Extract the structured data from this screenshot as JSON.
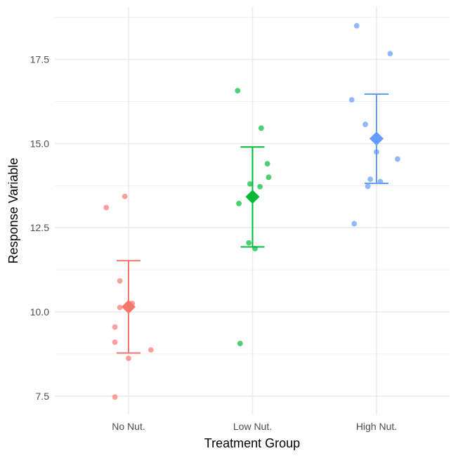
{
  "chart_data": {
    "type": "scatter",
    "xlabel": "Treatment Group",
    "ylabel": "Response Variable",
    "categories": [
      "No Nut.",
      "Low Nut.",
      "High Nut."
    ],
    "y_ticks": [
      "7.5",
      "10.0",
      "12.5",
      "15.0",
      "17.5"
    ],
    "ylim": [
      7.0,
      19.0
    ],
    "grid": true,
    "legend": "none",
    "series": [
      {
        "category": "No Nut.",
        "color": "#F8766D",
        "points": [
          {
            "x": -0.18,
            "y": 13.1
          },
          {
            "x": -0.03,
            "y": 13.43
          },
          {
            "x": -0.07,
            "y": 10.92
          },
          {
            "x": -0.07,
            "y": 10.13
          },
          {
            "x": 0.03,
            "y": 10.25
          },
          {
            "x": -0.11,
            "y": 9.55
          },
          {
            "x": -0.11,
            "y": 9.1
          },
          {
            "x": 0.18,
            "y": 8.87
          },
          {
            "x": 0.0,
            "y": 8.62
          },
          {
            "x": -0.11,
            "y": 7.47
          }
        ],
        "mean": 10.15,
        "error_low": 8.78,
        "error_high": 11.52
      },
      {
        "category": "Low Nut.",
        "color": "#00BA38",
        "points": [
          {
            "x": -0.12,
            "y": 16.57
          },
          {
            "x": 0.07,
            "y": 15.46
          },
          {
            "x": 0.12,
            "y": 14.4
          },
          {
            "x": 0.13,
            "y": 14.0
          },
          {
            "x": -0.02,
            "y": 13.8
          },
          {
            "x": 0.06,
            "y": 13.72
          },
          {
            "x": -0.11,
            "y": 13.22
          },
          {
            "x": -0.03,
            "y": 12.05
          },
          {
            "x": 0.02,
            "y": 11.88
          },
          {
            "x": -0.1,
            "y": 9.06
          }
        ],
        "mean": 13.42,
        "error_low": 11.93,
        "error_high": 14.9
      },
      {
        "category": "High Nut.",
        "color": "#619CFF",
        "points": [
          {
            "x": -0.16,
            "y": 18.5
          },
          {
            "x": 0.11,
            "y": 17.67
          },
          {
            "x": -0.2,
            "y": 16.3
          },
          {
            "x": -0.09,
            "y": 15.57
          },
          {
            "x": 0.0,
            "y": 14.75
          },
          {
            "x": 0.17,
            "y": 14.54
          },
          {
            "x": -0.05,
            "y": 13.94
          },
          {
            "x": 0.03,
            "y": 13.87
          },
          {
            "x": -0.07,
            "y": 13.73
          },
          {
            "x": -0.18,
            "y": 12.62
          }
        ],
        "mean": 15.15,
        "error_low": 13.82,
        "error_high": 16.47
      }
    ]
  }
}
